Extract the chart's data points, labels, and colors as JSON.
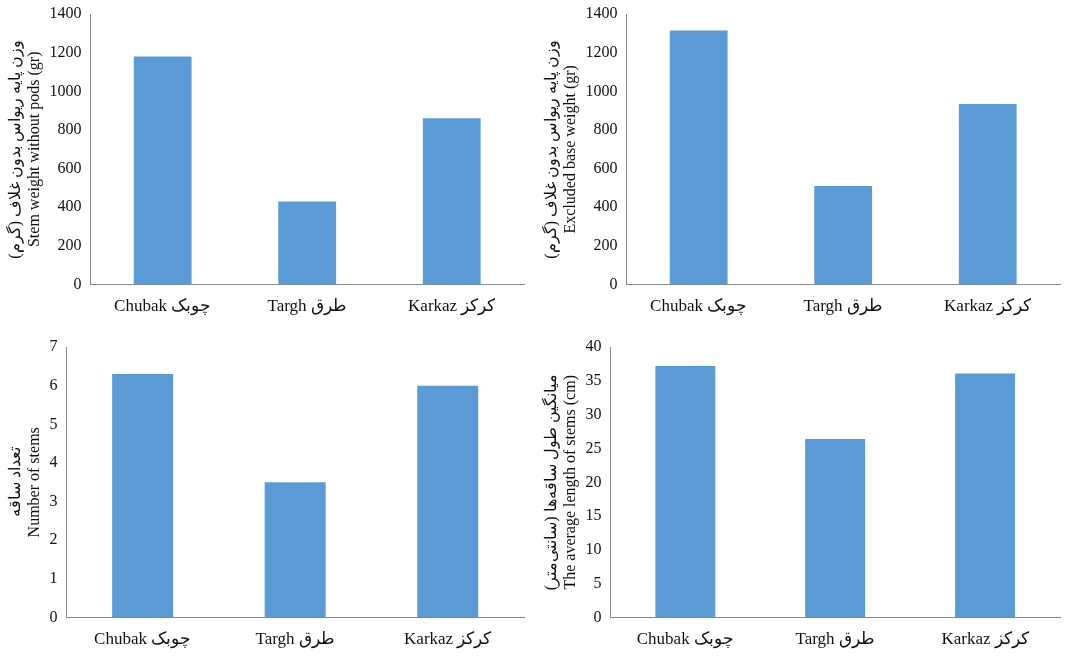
{
  "chart_data": [
    {
      "type": "bar",
      "ylabel": "وزن پایه ریواس بدون غلاف (گرم)\nStem weight without pods (gr)",
      "categories": [
        "Chubak چوبک",
        "Targh طرق",
        "Karkaz کرکز"
      ],
      "values": [
        1180,
        430,
        860
      ],
      "color": "#5b9bd5",
      "ylim": [
        0,
        1400
      ],
      "yticks": [
        0,
        200,
        400,
        600,
        800,
        1000,
        1200,
        1400
      ]
    },
    {
      "type": "bar",
      "ylabel": "وزن پایه ریواس بدون غلاف (گرم)\nExcluded base weight (gr)",
      "categories": [
        "Chubak چوبک",
        "Targh طرق",
        "Karkaz کرکز"
      ],
      "values": [
        1315,
        510,
        935
      ],
      "color": "#5b9bd5",
      "ylim": [
        0,
        1400
      ],
      "yticks": [
        0,
        200,
        400,
        600,
        800,
        1000,
        1200,
        1400
      ]
    },
    {
      "type": "bar",
      "ylabel": "تعداد ساقه\nNumber of stems",
      "categories": [
        "Chubak چوبک",
        "Targh طرق",
        "Karkaz کرکز"
      ],
      "values": [
        6.3,
        3.5,
        6.0
      ],
      "color": "#5b9bd5",
      "ylim": [
        0,
        7
      ],
      "yticks": [
        0,
        1,
        2,
        3,
        4,
        5,
        6,
        7
      ]
    },
    {
      "type": "bar",
      "ylabel": "میانگین طول ساقه‌ها (سانتی‌متر)\nThe average length of stems (cm)",
      "categories": [
        "Chubak چوبک",
        "Targh طرق",
        "Karkaz کرکز"
      ],
      "values": [
        37.2,
        26.4,
        36.1
      ],
      "color": "#5b9bd5",
      "ylim": [
        0,
        40
      ],
      "yticks": [
        0,
        5,
        10,
        15,
        20,
        25,
        30,
        35,
        40
      ]
    }
  ]
}
